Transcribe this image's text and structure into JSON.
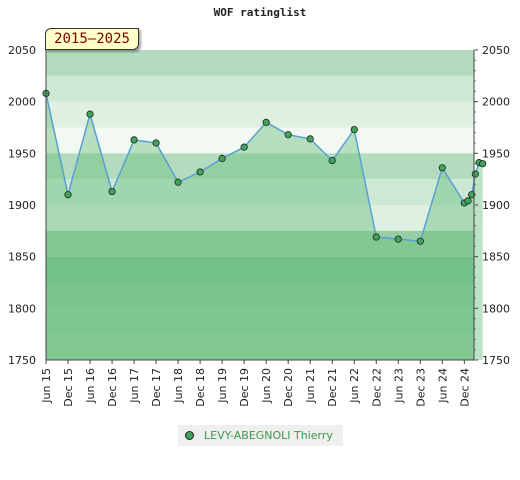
{
  "chart_data": {
    "type": "line",
    "title": "WOF ratinglist",
    "period_label": "2015–2025",
    "ylim": [
      1750,
      2050
    ],
    "yticks": [
      1750,
      1800,
      1850,
      1900,
      1950,
      2000,
      2050
    ],
    "xlim": [
      "2015-06",
      "2025-01"
    ],
    "xtick_labels": [
      "Jun 15",
      "Dec 15",
      "Jun 16",
      "Dec 16",
      "Jun 17",
      "Dec 17",
      "Jun 18",
      "Dec 18",
      "Jun 19",
      "Dec 19",
      "Jun 20",
      "Dec 20",
      "Jun 21",
      "Dec 21",
      "Jun 22",
      "Dec 22",
      "Jun 23",
      "Dec 23",
      "Jun 24",
      "Dec 24"
    ],
    "background_bands": [
      {
        "range": [
          2025,
          2050
        ],
        "color": "#b2dcbd"
      },
      {
        "range": [
          2000,
          2025
        ],
        "color": "#cde9d3"
      },
      {
        "range": [
          1975,
          2000
        ],
        "color": "#dff0e2"
      },
      {
        "range": [
          1950,
          1975
        ],
        "color": "#f2f9f3"
      },
      {
        "range": [
          1925,
          1950
        ],
        "color": "#b2dcbd"
      },
      {
        "range": [
          1900,
          1925
        ],
        "color": "#cde9d3"
      },
      {
        "range": [
          1875,
          1900
        ],
        "color": "#dff0e2"
      },
      {
        "range": [
          1850,
          1875
        ],
        "color": "#96cfa5"
      },
      {
        "range": [
          1825,
          1850
        ],
        "color": "#7cc391"
      },
      {
        "range": [
          1800,
          1825
        ],
        "color": "#89c99c"
      },
      {
        "range": [
          1775,
          1800
        ],
        "color": "#8fcca1"
      },
      {
        "range": [
          1750,
          1775
        ],
        "color": "#96cfa5"
      }
    ],
    "series": [
      {
        "name": "LEVY-ABEGNOLI Thierry",
        "color": "#3fa55a",
        "line_color": "#5a9fd4",
        "fill_color": "#6abf7f",
        "x": [
          "2015-06",
          "2015-12",
          "2016-06",
          "2016-12",
          "2017-06",
          "2017-12",
          "2018-06",
          "2018-12",
          "2019-06",
          "2019-12",
          "2020-06",
          "2020-12",
          "2021-06",
          "2021-12",
          "2022-06",
          "2022-12",
          "2023-06",
          "2023-12",
          "2024-06",
          "2024-12",
          "2025-01",
          "2025-02",
          "2025-03",
          "2025-04",
          "2025-05"
        ],
        "y": [
          2008,
          1910,
          1988,
          1913,
          1963,
          1960,
          1922,
          1932,
          1945,
          1956,
          1980,
          1968,
          1964,
          1943,
          1973,
          1869,
          1867,
          1865,
          1936,
          1902,
          1904,
          1910,
          1930,
          1941,
          1940
        ]
      }
    ],
    "grid": true,
    "legend_position": "bottom"
  }
}
